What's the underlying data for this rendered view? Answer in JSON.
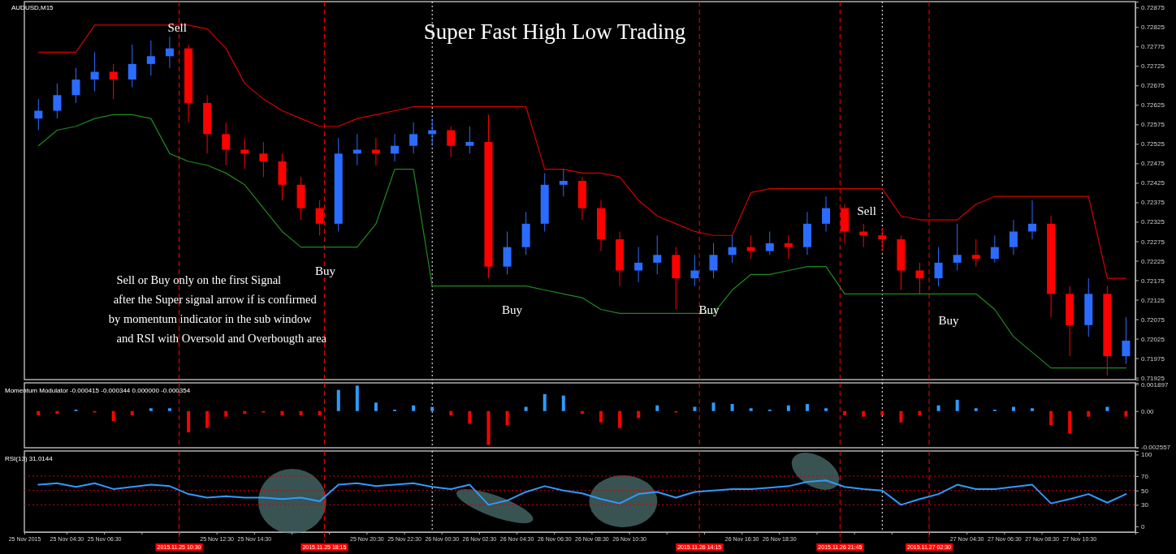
{
  "chart_data": [
    {
      "type": "candlestick",
      "title": "Super Fast High Low Trading",
      "subtitle": "AUDUSD,M15",
      "x": [
        "2015-11-25T03:00",
        "2015-11-25T04:00",
        "2015-11-25T05:00",
        "2015-11-25T06:00",
        "2015-11-25T07:00",
        "2015-11-25T08:00",
        "2015-11-25T09:00",
        "2015-11-25T10:00",
        "2015-11-25T11:00",
        "2015-11-25T12:00",
        "2015-11-25T13:00",
        "2015-11-25T14:00",
        "2015-11-25T15:00",
        "2015-11-25T16:00",
        "2015-11-25T17:00",
        "2015-11-25T18:00",
        "2015-11-25T19:00",
        "2015-11-25T20:00",
        "2015-11-25T21:00",
        "2015-11-25T22:00",
        "2015-11-25T23:00",
        "2015-11-26T00:00",
        "2015-11-26T01:00",
        "2015-11-26T02:00",
        "2015-11-26T03:00",
        "2015-11-26T04:00",
        "2015-11-26T05:00",
        "2015-11-26T06:00",
        "2015-11-26T07:00",
        "2015-11-26T08:00",
        "2015-11-26T09:00",
        "2015-11-26T10:00",
        "2015-11-26T11:00",
        "2015-11-26T12:00",
        "2015-11-26T13:00",
        "2015-11-26T14:00",
        "2015-11-26T15:00",
        "2015-11-26T16:00",
        "2015-11-26T17:00",
        "2015-11-26T18:00",
        "2015-11-26T19:00",
        "2015-11-26T20:00",
        "2015-11-26T21:00",
        "2015-11-26T22:00",
        "2015-11-26T23:00",
        "2015-11-27T00:00",
        "2015-11-27T01:00",
        "2015-11-27T02:00",
        "2015-11-27T03:00",
        "2015-11-27T04:00",
        "2015-11-27T05:00",
        "2015-11-27T06:00",
        "2015-11-27T07:00",
        "2015-11-27T08:00",
        "2015-11-27T09:00",
        "2015-11-27T10:00",
        "2015-11-27T11:00",
        "2015-11-27T12:00",
        "2015-11-27T13:00"
      ],
      "ohlc": [
        [
          0.7259,
          0.7264,
          0.7256,
          0.7261
        ],
        [
          0.7261,
          0.7268,
          0.7259,
          0.7265
        ],
        [
          0.7265,
          0.7272,
          0.7263,
          0.7269
        ],
        [
          0.7269,
          0.7276,
          0.7266,
          0.7271
        ],
        [
          0.7271,
          0.7273,
          0.7264,
          0.7269
        ],
        [
          0.7269,
          0.7278,
          0.7267,
          0.7273
        ],
        [
          0.7273,
          0.7279,
          0.727,
          0.7275
        ],
        [
          0.7275,
          0.728,
          0.7272,
          0.7277
        ],
        [
          0.7277,
          0.7278,
          0.7258,
          0.7263
        ],
        [
          0.7263,
          0.7265,
          0.725,
          0.7255
        ],
        [
          0.7255,
          0.7258,
          0.7247,
          0.7251
        ],
        [
          0.7251,
          0.7254,
          0.7246,
          0.725
        ],
        [
          0.725,
          0.7253,
          0.7244,
          0.7248
        ],
        [
          0.7248,
          0.725,
          0.7238,
          0.7242
        ],
        [
          0.7242,
          0.7244,
          0.7233,
          0.7236
        ],
        [
          0.7236,
          0.7238,
          0.7229,
          0.7232
        ],
        [
          0.7232,
          0.7254,
          0.723,
          0.725
        ],
        [
          0.725,
          0.7255,
          0.7247,
          0.7251
        ],
        [
          0.7251,
          0.7254,
          0.7247,
          0.725
        ],
        [
          0.725,
          0.7255,
          0.7248,
          0.7252
        ],
        [
          0.7252,
          0.7258,
          0.725,
          0.7255
        ],
        [
          0.7255,
          0.7259,
          0.7252,
          0.7256
        ],
        [
          0.7256,
          0.7257,
          0.7249,
          0.7252
        ],
        [
          0.7252,
          0.7257,
          0.725,
          0.7253
        ],
        [
          0.7253,
          0.726,
          0.7218,
          0.7221
        ],
        [
          0.7221,
          0.723,
          0.7219,
          0.7226
        ],
        [
          0.7226,
          0.7235,
          0.7224,
          0.7232
        ],
        [
          0.7232,
          0.7245,
          0.723,
          0.7242
        ],
        [
          0.7242,
          0.7246,
          0.7239,
          0.7243
        ],
        [
          0.7243,
          0.7244,
          0.7233,
          0.7236
        ],
        [
          0.7236,
          0.7238,
          0.7225,
          0.7228
        ],
        [
          0.7228,
          0.723,
          0.7216,
          0.722
        ],
        [
          0.722,
          0.7226,
          0.7217,
          0.7222
        ],
        [
          0.7222,
          0.7229,
          0.7219,
          0.7224
        ],
        [
          0.7224,
          0.7226,
          0.721,
          0.7218
        ],
        [
          0.7218,
          0.7224,
          0.7216,
          0.722
        ],
        [
          0.722,
          0.7227,
          0.7218,
          0.7224
        ],
        [
          0.7224,
          0.7229,
          0.7222,
          0.7226
        ],
        [
          0.7226,
          0.7229,
          0.7223,
          0.7225
        ],
        [
          0.7225,
          0.723,
          0.7224,
          0.7227
        ],
        [
          0.7227,
          0.7229,
          0.7223,
          0.7226
        ],
        [
          0.7226,
          0.7235,
          0.7224,
          0.7232
        ],
        [
          0.7232,
          0.7239,
          0.723,
          0.7236
        ],
        [
          0.7236,
          0.7237,
          0.7227,
          0.723
        ],
        [
          0.723,
          0.7232,
          0.7226,
          0.7229
        ],
        [
          0.7229,
          0.7231,
          0.7225,
          0.7228
        ],
        [
          0.7228,
          0.7229,
          0.7215,
          0.722
        ],
        [
          0.722,
          0.7222,
          0.7214,
          0.7218
        ],
        [
          0.7218,
          0.7226,
          0.7216,
          0.7222
        ],
        [
          0.7222,
          0.7232,
          0.722,
          0.7224
        ],
        [
          0.7224,
          0.7228,
          0.7221,
          0.7223
        ],
        [
          0.7223,
          0.7229,
          0.7222,
          0.7226
        ],
        [
          0.7226,
          0.7233,
          0.7224,
          0.723
        ],
        [
          0.723,
          0.7238,
          0.7228,
          0.7232
        ],
        [
          0.7232,
          0.7234,
          0.7208,
          0.7214
        ],
        [
          0.7214,
          0.7216,
          0.7198,
          0.7206
        ],
        [
          0.7206,
          0.7218,
          0.7203,
          0.7214
        ],
        [
          0.7214,
          0.7216,
          0.7193,
          0.7198
        ],
        [
          0.7198,
          0.7208,
          0.7196,
          0.7202
        ]
      ],
      "colors": [
        "#2a6cff",
        "#2a6cff",
        "#2a6cff",
        "#2a6cff",
        "#ff0000",
        "#2a6cff",
        "#2a6cff",
        "#2a6cff",
        "#ff0000",
        "#ff0000",
        "#ff0000",
        "#ff0000",
        "#ff0000",
        "#ff0000",
        "#ff0000",
        "#ff0000",
        "#2a6cff",
        "#2a6cff",
        "#ff0000",
        "#2a6cff",
        "#2a6cff",
        "#2a6cff",
        "#ff0000",
        "#2a6cff",
        "#ff0000",
        "#2a6cff",
        "#2a6cff",
        "#2a6cff",
        "#2a6cff",
        "#ff0000",
        "#ff0000",
        "#ff0000",
        "#2a6cff",
        "#2a6cff",
        "#ff0000",
        "#2a6cff",
        "#2a6cff",
        "#2a6cff",
        "#ff0000",
        "#2a6cff",
        "#ff0000",
        "#2a6cff",
        "#2a6cff",
        "#ff0000",
        "#ff0000",
        "#ff0000",
        "#ff0000",
        "#ff0000",
        "#2a6cff",
        "#2a6cff",
        "#ff0000",
        "#2a6cff",
        "#2a6cff",
        "#2a6cff",
        "#ff0000",
        "#ff0000",
        "#2a6cff",
        "#ff0000",
        "#2a6cff"
      ],
      "series": [
        {
          "type": "line",
          "color": "#d40000",
          "values": [
            0.7276,
            0.7276,
            0.7276,
            0.7283,
            0.7283,
            0.7283,
            0.7283,
            0.7283,
            0.7283,
            0.7282,
            0.7277,
            0.7268,
            0.7264,
            0.7261,
            0.7259,
            0.7257,
            0.7257,
            0.7259,
            0.726,
            0.7261,
            0.7262,
            0.7262,
            0.7262,
            0.7262,
            0.7262,
            0.7262,
            0.7262,
            0.7246,
            0.7246,
            0.7245,
            0.7245,
            0.7244,
            0.7238,
            0.7234,
            0.7232,
            0.723,
            0.7229,
            0.7229,
            0.724,
            0.7241,
            0.7241,
            0.7241,
            0.7241,
            0.7241,
            0.7241,
            0.7241,
            0.7234,
            0.7233,
            0.7233,
            0.7233,
            0.7237,
            0.7239,
            0.7239,
            0.7239,
            0.7239,
            0.7239,
            0.7239,
            0.7218,
            0.7218
          ]
        },
        {
          "type": "line",
          "color": "#1f8a1f",
          "values": [
            0.7252,
            0.7256,
            0.7257,
            0.7259,
            0.726,
            0.726,
            0.7259,
            0.725,
            0.7248,
            0.7247,
            0.7245,
            0.7242,
            0.7236,
            0.723,
            0.7226,
            0.7226,
            0.7226,
            0.7226,
            0.7232,
            0.7246,
            0.7246,
            0.7216,
            0.7216,
            0.7216,
            0.7216,
            0.7216,
            0.7216,
            0.7215,
            0.7214,
            0.7213,
            0.721,
            0.7209,
            0.7209,
            0.7209,
            0.7209,
            0.7209,
            0.7209,
            0.7215,
            0.7219,
            0.7219,
            0.722,
            0.7221,
            0.7221,
            0.7214,
            0.7214,
            0.7214,
            0.7214,
            0.7214,
            0.7214,
            0.7214,
            0.7214,
            0.721,
            0.7203,
            0.7199,
            0.7195,
            0.7195,
            0.7195,
            0.7195,
            0.7195
          ]
        }
      ],
      "xlim": [
        "2015-11-25T02:15",
        "2015-11-27T13:30"
      ],
      "ylim": [
        0.7192,
        0.7289
      ],
      "yticks": [
        0.72875,
        0.72825,
        0.72775,
        0.72725,
        0.72675,
        0.72625,
        0.72575,
        0.72525,
        0.72475,
        0.72425,
        0.72375,
        0.72325,
        0.72275,
        0.72225,
        0.72175,
        0.72125,
        0.72075,
        0.72025,
        0.71975,
        0.71925
      ],
      "tick_labels": "y",
      "ref_lines": [
        {
          "axis": "x",
          "value": "2015-11-25T10:30",
          "color": "#ff0000",
          "line_style": "dashed"
        },
        {
          "axis": "x",
          "value": "2015-11-25T18:15",
          "color": "#ff0000",
          "line_style": "dashed"
        },
        {
          "axis": "x",
          "value": "2015-11-26T00:00",
          "color": "#ffffff",
          "line_style": "dotted"
        },
        {
          "axis": "x",
          "value": "2015-11-26T14:15",
          "color": "#ff0000",
          "line_style": "dashed"
        },
        {
          "axis": "x",
          "value": "2015-11-26T21:45",
          "color": "#ff0000",
          "line_style": "dashed"
        },
        {
          "axis": "x",
          "value": "2015-11-27T00:00",
          "color": "#ffffff",
          "line_style": "dotted"
        },
        {
          "axis": "x",
          "value": "2015-11-27T02:30",
          "color": "#ff0000",
          "line_style": "dashed"
        }
      ],
      "annotations": [
        "Sell",
        "Buy",
        "Buy",
        "Buy",
        "Sell",
        "Buy",
        "Sell or Buy only on the first Signal",
        "after the Super signal arrow if is confirmed",
        "by momentum indicator in the sub window",
        "and RSI with Oversold and Overbougth area"
      ]
    },
    {
      "type": "bar",
      "title": "Momentum Modulator -0.000415 -0.000344 0.000000 -0.000354",
      "x": [
        "2015-11-25T03:00",
        "2015-11-25T04:00",
        "2015-11-25T05:00",
        "2015-11-25T06:00",
        "2015-11-25T07:00",
        "2015-11-25T08:00",
        "2015-11-25T09:00",
        "2015-11-25T10:00",
        "2015-11-25T11:00",
        "2015-11-25T12:00",
        "2015-11-25T13:00",
        "2015-11-25T14:00",
        "2015-11-25T15:00",
        "2015-11-25T16:00",
        "2015-11-25T17:00",
        "2015-11-25T18:00",
        "2015-11-25T19:00",
        "2015-11-25T20:00",
        "2015-11-25T21:00",
        "2015-11-25T22:00",
        "2015-11-25T23:00",
        "2015-11-26T00:00",
        "2015-11-26T01:00",
        "2015-11-26T02:00",
        "2015-11-26T03:00",
        "2015-11-26T04:00",
        "2015-11-26T05:00",
        "2015-11-26T06:00",
        "2015-11-26T07:00",
        "2015-11-26T08:00",
        "2015-11-26T09:00",
        "2015-11-26T10:00",
        "2015-11-26T11:00",
        "2015-11-26T12:00",
        "2015-11-26T13:00",
        "2015-11-26T14:00",
        "2015-11-26T15:00",
        "2015-11-26T16:00",
        "2015-11-26T17:00",
        "2015-11-26T18:00",
        "2015-11-26T19:00",
        "2015-11-26T20:00",
        "2015-11-26T21:00",
        "2015-11-26T22:00",
        "2015-11-26T23:00",
        "2015-11-27T00:00",
        "2015-11-27T01:00",
        "2015-11-27T02:00",
        "2015-11-27T03:00",
        "2015-11-27T04:00",
        "2015-11-27T05:00",
        "2015-11-27T06:00",
        "2015-11-27T07:00",
        "2015-11-27T08:00",
        "2015-11-27T09:00",
        "2015-11-27T10:00",
        "2015-11-27T11:00",
        "2015-11-27T12:00",
        "2015-11-27T13:00"
      ],
      "values": [
        -0.0003,
        -0.0002,
        0.0001,
        -0.0001,
        -0.0007,
        -0.0003,
        0.0002,
        0.0002,
        -0.0015,
        -0.0012,
        -0.0004,
        -0.0002,
        -0.0001,
        -0.0003,
        -0.0003,
        -0.0003,
        0.0015,
        0.0018,
        0.0006,
        0.0001,
        0.0004,
        0.0003,
        -0.0003,
        -0.0009,
        -0.0024,
        -0.001,
        0.0003,
        0.0012,
        0.0011,
        -0.0002,
        -0.0008,
        -0.0012,
        -0.0005,
        0.0004,
        -0.0001,
        0.0003,
        0.0006,
        0.0005,
        0.0002,
        0.0001,
        0.0004,
        0.0005,
        0.0002,
        -0.0003,
        -0.0004,
        -0.0003,
        -0.0008,
        -0.0003,
        0.0004,
        0.0008,
        0.0002,
        0.0001,
        0.0003,
        0.0002,
        -0.001,
        -0.0016,
        -0.0004,
        0.0003,
        -0.0004
      ],
      "colors": [
        "#ff0000",
        "#ff0000",
        "#2e9bff",
        "#ff0000",
        "#ff0000",
        "#ff0000",
        "#2e9bff",
        "#2e9bff",
        "#ff0000",
        "#ff0000",
        "#ff0000",
        "#ff0000",
        "#ff0000",
        "#ff0000",
        "#ff0000",
        "#ff0000",
        "#2e9bff",
        "#2e9bff",
        "#2e9bff",
        "#2e9bff",
        "#2e9bff",
        "#2e9bff",
        "#ff0000",
        "#ff0000",
        "#ff0000",
        "#ff0000",
        "#2e9bff",
        "#2e9bff",
        "#2e9bff",
        "#ff0000",
        "#ff0000",
        "#ff0000",
        "#ff0000",
        "#2e9bff",
        "#ff0000",
        "#2e9bff",
        "#2e9bff",
        "#2e9bff",
        "#2e9bff",
        "#2e9bff",
        "#2e9bff",
        "#2e9bff",
        "#2e9bff",
        "#ff0000",
        "#ff0000",
        "#ff0000",
        "#ff0000",
        "#ff0000",
        "#2e9bff",
        "#2e9bff",
        "#2e9bff",
        "#2e9bff",
        "#2e9bff",
        "#2e9bff",
        "#ff0000",
        "#ff0000",
        "#ff0000",
        "#2e9bff",
        "#ff0000"
      ],
      "xlim": [
        "2015-11-25T02:15",
        "2015-11-27T13:30"
      ],
      "ylim": [
        -0.0026,
        0.002
      ],
      "yticks": [
        0.001897,
        {
          "value": 0,
          "label": "0.00"
        },
        -0.002557
      ],
      "tick_labels": "y",
      "ref_lines": [
        {
          "axis": "x",
          "value": "2015-11-25T10:30",
          "color": "#ff0000",
          "line_style": "dashed"
        },
        {
          "axis": "x",
          "value": "2015-11-25T18:15",
          "color": "#ff0000",
          "line_style": "dashed"
        },
        {
          "axis": "x",
          "value": "2015-11-26T00:00",
          "color": "#ffffff",
          "line_style": "dotted"
        },
        {
          "axis": "x",
          "value": "2015-11-26T14:15",
          "color": "#ff0000",
          "line_style": "dashed"
        },
        {
          "axis": "x",
          "value": "2015-11-26T21:45",
          "color": "#ff0000",
          "line_style": "dashed"
        },
        {
          "axis": "x",
          "value": "2015-11-27T00:00",
          "color": "#ffffff",
          "line_style": "dotted"
        },
        {
          "axis": "x",
          "value": "2015-11-27T02:30",
          "color": "#ff0000",
          "line_style": "dashed"
        }
      ]
    },
    {
      "type": "line",
      "title": "RSI(13) 31.0144",
      "color": "#2e9bff",
      "x": [
        "2015-11-25T03:00",
        "2015-11-25T04:00",
        "2015-11-25T05:00",
        "2015-11-25T06:00",
        "2015-11-25T07:00",
        "2015-11-25T08:00",
        "2015-11-25T09:00",
        "2015-11-25T10:00",
        "2015-11-25T11:00",
        "2015-11-25T12:00",
        "2015-11-25T13:00",
        "2015-11-25T14:00",
        "2015-11-25T15:00",
        "2015-11-25T16:00",
        "2015-11-25T17:00",
        "2015-11-25T18:00",
        "2015-11-25T19:00",
        "2015-11-25T20:00",
        "2015-11-25T21:00",
        "2015-11-25T22:00",
        "2015-11-25T23:00",
        "2015-11-26T00:00",
        "2015-11-26T01:00",
        "2015-11-26T02:00",
        "2015-11-26T03:00",
        "2015-11-26T04:00",
        "2015-11-26T05:00",
        "2015-11-26T06:00",
        "2015-11-26T07:00",
        "2015-11-26T08:00",
        "2015-11-26T09:00",
        "2015-11-26T10:00",
        "2015-11-26T11:00",
        "2015-11-26T12:00",
        "2015-11-26T13:00",
        "2015-11-26T14:00",
        "2015-11-26T15:00",
        "2015-11-26T16:00",
        "2015-11-26T17:00",
        "2015-11-26T18:00",
        "2015-11-26T19:00",
        "2015-11-26T20:00",
        "2015-11-26T21:00",
        "2015-11-26T22:00",
        "2015-11-26T23:00",
        "2015-11-27T00:00",
        "2015-11-27T01:00",
        "2015-11-27T02:00",
        "2015-11-27T03:00",
        "2015-11-27T04:00",
        "2015-11-27T05:00",
        "2015-11-27T06:00",
        "2015-11-27T07:00",
        "2015-11-27T08:00",
        "2015-11-27T09:00",
        "2015-11-27T10:00",
        "2015-11-27T11:00",
        "2015-11-27T12:00",
        "2015-11-27T13:00"
      ],
      "values": [
        58,
        60,
        55,
        60,
        52,
        55,
        58,
        56,
        45,
        40,
        42,
        40,
        40,
        38,
        40,
        35,
        58,
        60,
        56,
        58,
        60,
        55,
        52,
        58,
        30,
        36,
        48,
        56,
        50,
        46,
        38,
        32,
        45,
        48,
        40,
        48,
        50,
        52,
        52,
        54,
        56,
        62,
        64,
        55,
        52,
        50,
        30,
        38,
        45,
        58,
        52,
        52,
        55,
        58,
        32,
        38,
        45,
        33,
        45
      ],
      "xlim": [
        "2015-11-25T02:15",
        "2015-11-27T13:30"
      ],
      "ylim": [
        -8,
        105
      ],
      "yticks": [
        100,
        70,
        50,
        30,
        0
      ],
      "xticks": [
        {
          "value": "2015-11-25T02:15",
          "label": "25 Nov 2015"
        },
        {
          "value": "2015-11-25T04:30",
          "label": "25 Nov 04:30"
        },
        {
          "value": "2015-11-25T06:30",
          "label": "25 Nov 06:30"
        },
        {
          "value": "2015-11-25T08:30",
          "label": null
        },
        {
          "value": "2015-11-25T10:30",
          "label": null
        },
        {
          "value": "2015-11-25T12:30",
          "label": "25 Nov 12:30"
        },
        {
          "value": "2015-11-25T14:30",
          "label": "25 Nov 14:30"
        },
        {
          "value": "2015-11-25T16:30",
          "label": null
        },
        {
          "value": "2015-11-25T18:30",
          "label": null
        },
        {
          "value": "2015-11-25T20:30",
          "label": "25 Nov 20:30"
        },
        {
          "value": "2015-11-25T22:30",
          "label": "25 Nov 22:30"
        },
        {
          "value": "2015-11-26T00:30",
          "label": "26 Nov 00:30"
        },
        {
          "value": "2015-11-26T02:30",
          "label": "26 Nov 02:30"
        },
        {
          "value": "2015-11-26T04:30",
          "label": "26 Nov 04:30"
        },
        {
          "value": "2015-11-26T06:30",
          "label": "26 Nov 06:30"
        },
        {
          "value": "2015-11-26T08:30",
          "label": "26 Nov 08:30"
        },
        {
          "value": "2015-11-26T10:30",
          "label": "26 Nov 10:30"
        },
        {
          "value": "2015-11-26T12:30",
          "label": null
        },
        {
          "value": "2015-11-26T14:30",
          "label": null
        },
        {
          "value": "2015-11-26T16:30",
          "label": "26 Nov 16:30"
        },
        {
          "value": "2015-11-26T18:30",
          "label": "26 Nov 18:30"
        },
        {
          "value": "2015-11-26T20:30",
          "label": null
        },
        {
          "value": "2015-11-26T22:30",
          "label": null
        },
        {
          "value": "2015-11-27T00:30",
          "label": null
        },
        {
          "value": "2015-11-27T02:30",
          "label": null
        },
        {
          "value": "2015-11-27T04:30",
          "label": "27 Nov 04:30"
        },
        {
          "value": "2015-11-27T06:30",
          "label": "27 Nov 06:30"
        },
        {
          "value": "2015-11-27T08:30",
          "label": "27 Nov 08:30"
        },
        {
          "value": "2015-11-27T10:30",
          "label": "27 Nov 10:30"
        }
      ],
      "ref_lines": [
        {
          "axis": "y",
          "value": 70,
          "color": "#d00000",
          "line_style": "dotted"
        },
        {
          "axis": "y",
          "value": 50,
          "color": "#d00000",
          "line_style": "dotted"
        },
        {
          "axis": "y",
          "value": 30,
          "color": "#d00000",
          "line_style": "dotted"
        },
        {
          "axis": "x",
          "value": "2015-11-25T10:30",
          "label": "2015.11.25 10:30",
          "color": "#ff0000",
          "line_style": "dashed"
        },
        {
          "axis": "x",
          "value": "2015-11-25T18:15",
          "label": "2015.11.25 18:15",
          "color": "#ff0000",
          "line_style": "dashed"
        },
        {
          "axis": "x",
          "value": "2015-11-26T00:00",
          "color": "#ffffff",
          "line_style": "dotted"
        },
        {
          "axis": "x",
          "value": "2015-11-26T14:15",
          "label": "2015.11.26 14:15",
          "color": "#ff0000",
          "line_style": "dashed"
        },
        {
          "axis": "x",
          "value": "2015-11-26T21:45",
          "label": "2015.11.26 21:45",
          "color": "#ff0000",
          "line_style": "dashed"
        },
        {
          "axis": "x",
          "value": "2015-11-27T00:00",
          "color": "#ffffff",
          "line_style": "dotted"
        },
        {
          "axis": "x",
          "value": "2015-11-27T02:30",
          "label": "2015.11.27 02:30",
          "color": "#ff0000",
          "line_style": "dashed"
        }
      ]
    }
  ]
}
